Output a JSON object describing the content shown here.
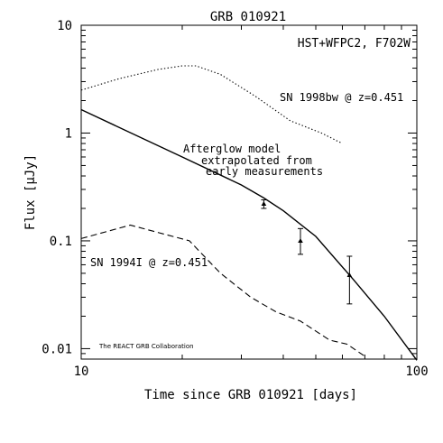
{
  "chart_data": {
    "type": "line",
    "title": "GRB 010921",
    "instrument_label": "HST+WFPC2, F702W",
    "xlabel": "Time since GRB 010921 [days]",
    "ylabel": "Flux [μJy]",
    "xscale": "log",
    "yscale": "log",
    "xlim": [
      10,
      100
    ],
    "ylim": [
      0.008,
      10
    ],
    "x_ticks": [
      "10",
      "100"
    ],
    "y_ticks": [
      "0.01",
      "0.1",
      "1",
      "10"
    ],
    "grid": false,
    "series": [
      {
        "name": "Afterglow model extrapolated from early measurements",
        "style": "solid",
        "x": [
          10,
          20,
          30,
          35,
          40,
          50,
          65,
          80,
          100
        ],
        "y": [
          1.65,
          0.6,
          0.33,
          0.25,
          0.19,
          0.11,
          0.043,
          0.02,
          0.0078
        ]
      },
      {
        "name": "SN 1998bw @ z=0.451",
        "style": "dotted",
        "x": [
          10,
          13,
          17,
          20,
          22,
          26,
          33,
          42,
          52,
          60
        ],
        "y": [
          2.5,
          3.2,
          3.9,
          4.2,
          4.2,
          3.5,
          2.2,
          1.3,
          1.0,
          0.8
        ]
      },
      {
        "name": "SN 1994I @ z=0.451",
        "style": "dashed",
        "x": [
          10,
          14,
          21,
          26,
          32,
          38,
          45,
          55,
          62,
          70
        ],
        "y": [
          0.105,
          0.14,
          0.1,
          0.05,
          0.03,
          0.022,
          0.018,
          0.012,
          0.011,
          0.0085
        ]
      }
    ],
    "measurements": [
      {
        "x": 35,
        "y": 0.22,
        "yerr_low": 0.2,
        "yerr_high": 0.24
      },
      {
        "x": 45,
        "y": 0.1,
        "yerr_low": 0.075,
        "yerr_high": 0.13
      },
      {
        "x": 63,
        "y": 0.048,
        "yerr_low": 0.026,
        "yerr_high": 0.072
      }
    ],
    "annotations": {
      "afterglow_lines": [
        "Afterglow model",
        "extrapolated from",
        "early measurements"
      ],
      "sn1998bw": "SN 1998bw @ z=0.451",
      "sn1994i": "SN 1994I @ z=0.451",
      "credit": "The REACT GRB Collaboration"
    }
  }
}
